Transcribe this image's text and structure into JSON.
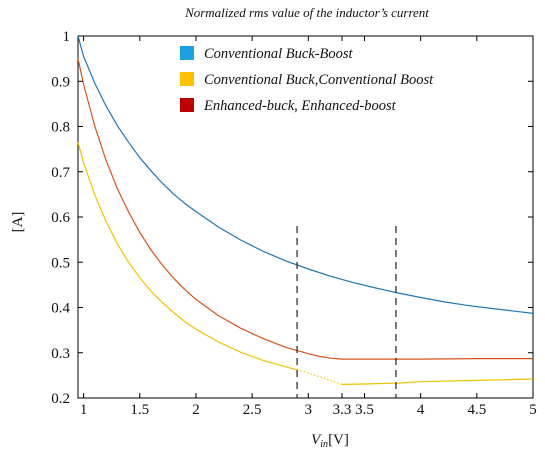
{
  "chart_data": {
    "type": "line",
    "title": "Normalized rms value of the inductor’s current",
    "xlabel_main": "V",
    "xlabel_sub": "in",
    "xlabel_unit": "[V]",
    "ylabel": "[A]",
    "xlim": [
      0.95,
      5.0
    ],
    "ylim": [
      0.2,
      1.0
    ],
    "x_ticks": [
      {
        "v": 1,
        "label": "1"
      },
      {
        "v": 1.5,
        "label": "1.5"
      },
      {
        "v": 2,
        "label": "2"
      },
      {
        "v": 2.5,
        "label": "2.5"
      },
      {
        "v": 3,
        "label": "3"
      },
      {
        "v": 3.3,
        "label": "3.3"
      },
      {
        "v": 3.5,
        "label": "3.5"
      },
      {
        "v": 4,
        "label": "4"
      },
      {
        "v": 4.5,
        "label": "4.5"
      },
      {
        "v": 5,
        "label": "5"
      }
    ],
    "y_ticks": [
      {
        "v": 0.2,
        "label": "0.2"
      },
      {
        "v": 0.3,
        "label": "0.3"
      },
      {
        "v": 0.4,
        "label": "0.4"
      },
      {
        "v": 0.5,
        "label": "0.5"
      },
      {
        "v": 0.6,
        "label": "0.6"
      },
      {
        "v": 0.7,
        "label": "0.7"
      },
      {
        "v": 0.8,
        "label": "0.8"
      },
      {
        "v": 0.9,
        "label": "0.9"
      },
      {
        "v": 1,
        "label": "1"
      }
    ],
    "legend_position": "top-center",
    "series": [
      {
        "name": "Conventional Buck-Boost",
        "color": "#1f77b4",
        "legend_color": "#1ba1e2",
        "style": "solid",
        "x": [
          0.95,
          1.0,
          1.1,
          1.2,
          1.3,
          1.4,
          1.5,
          1.6,
          1.7,
          1.8,
          1.9,
          2.0,
          2.2,
          2.4,
          2.6,
          2.8,
          3.0,
          3.2,
          3.4,
          3.6,
          3.8,
          4.0,
          4.2,
          4.4,
          4.6,
          4.8,
          5.0
        ],
        "values": [
          1.0,
          0.955,
          0.895,
          0.845,
          0.802,
          0.765,
          0.731,
          0.702,
          0.675,
          0.651,
          0.63,
          0.612,
          0.578,
          0.549,
          0.524,
          0.503,
          0.485,
          0.469,
          0.455,
          0.443,
          0.432,
          0.422,
          0.413,
          0.405,
          0.399,
          0.393,
          0.387
        ]
      },
      {
        "name": "Conventional Buck,Conventional Boost",
        "color": "#f2c200",
        "legend_color": "#ffc000",
        "style": "solid",
        "x": [
          0.95,
          1.0,
          1.1,
          1.2,
          1.3,
          1.4,
          1.5,
          1.6,
          1.7,
          1.8,
          1.9,
          2.0,
          2.2,
          2.4,
          2.6,
          2.8,
          2.9
        ],
        "values": [
          0.765,
          0.72,
          0.648,
          0.59,
          0.541,
          0.5,
          0.466,
          0.436,
          0.411,
          0.389,
          0.369,
          0.352,
          0.324,
          0.301,
          0.283,
          0.269,
          0.262
        ]
      },
      {
        "name": "",
        "color": "#f2c200",
        "style": "dotted",
        "x": [
          2.9,
          3.0,
          3.1,
          3.2,
          3.3
        ],
        "values": [
          0.262,
          0.255,
          0.247,
          0.239,
          0.23
        ]
      },
      {
        "name": "",
        "color": "#f2c200",
        "style": "solid",
        "x": [
          3.3,
          3.5,
          3.8,
          4.0,
          4.5,
          5.0
        ],
        "values": [
          0.23,
          0.231,
          0.233,
          0.236,
          0.239,
          0.242
        ]
      },
      {
        "name": "Enhanced-buck, Enhanced-boost",
        "color": "#d95319",
        "legend_color": "#c00000",
        "style": "solid",
        "x": [
          0.95,
          1.0,
          1.1,
          1.2,
          1.3,
          1.4,
          1.5,
          1.6,
          1.7,
          1.8,
          1.9,
          2.0,
          2.2,
          2.4,
          2.6,
          2.8,
          3.0,
          3.1,
          3.2,
          3.3,
          3.5,
          3.8,
          4.0,
          4.5,
          5.0
        ],
        "values": [
          0.95,
          0.893,
          0.8,
          0.725,
          0.663,
          0.611,
          0.566,
          0.527,
          0.494,
          0.465,
          0.44,
          0.418,
          0.382,
          0.354,
          0.331,
          0.312,
          0.298,
          0.292,
          0.288,
          0.286,
          0.286,
          0.286,
          0.286,
          0.287,
          0.287
        ]
      }
    ],
    "vlines": [
      2.9,
      3.78
    ]
  }
}
